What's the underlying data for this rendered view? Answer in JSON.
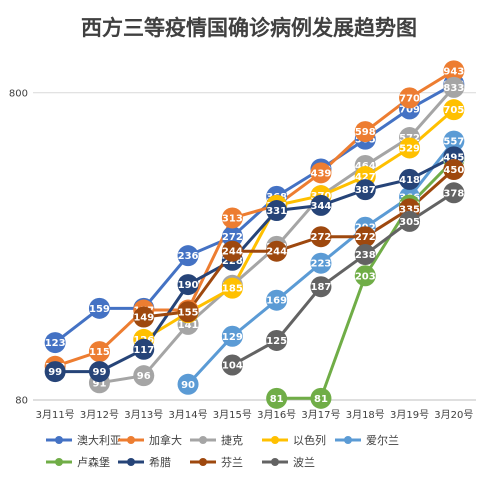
{
  "chart_data": {
    "type": "line",
    "title": "西方三等疫情国确诊病例发展趋势图",
    "xlabel": "",
    "ylabel": "",
    "y_scale": "log",
    "ylim": [
      80,
      1000
    ],
    "y_ticks": [
      "80",
      "800"
    ],
    "categories": [
      "3月11号",
      "3月12号",
      "3月13号",
      "3月14号",
      "3月15号",
      "3月16号",
      "3月17号",
      "3月18号",
      "3月19号",
      "3月20号"
    ],
    "grid": true,
    "legend_position": "bottom",
    "series": [
      {
        "name": "澳大利亚",
        "color": "#4472C4",
        "values": [
          123,
          159,
          159,
          236,
          272,
          368,
          452,
          565,
          709,
          853
        ]
      },
      {
        "name": "加拿大",
        "color": "#ED7D31",
        "values": [
          103,
          115,
          157,
          157,
          313,
          344,
          439,
          598,
          770,
          943
        ]
      },
      {
        "name": "捷克",
        "color": "#A5A5A5",
        "values": [
          null,
          91,
          96,
          141,
          189,
          253,
          370,
          464,
          572,
          833
        ]
      },
      {
        "name": "以色列",
        "color": "#FFC000",
        "values": [
          null,
          null,
          126,
          154,
          185,
          344,
          370,
          427,
          529,
          705
        ]
      },
      {
        "name": "爱尔兰",
        "color": "#5B9BD5",
        "values": [
          null,
          null,
          null,
          90,
          129,
          169,
          223,
          292,
          366,
          557
        ]
      },
      {
        "name": "卢森堡",
        "color": "#70AD47",
        "values": [
          null,
          null,
          null,
          null,
          null,
          81,
          81,
          203,
          345,
          484
        ]
      },
      {
        "name": "希腊",
        "color": "#264478",
        "values": [
          99,
          99,
          117,
          190,
          228,
          331,
          344,
          387,
          418,
          495
        ]
      },
      {
        "name": "芬兰",
        "color": "#9E480E",
        "values": [
          null,
          null,
          149,
          155,
          244,
          244,
          272,
          272,
          335,
          450
        ]
      },
      {
        "name": "波兰",
        "color": "#636363",
        "values": [
          null,
          null,
          null,
          null,
          104,
          125,
          187,
          238,
          305,
          378
        ]
      }
    ]
  }
}
